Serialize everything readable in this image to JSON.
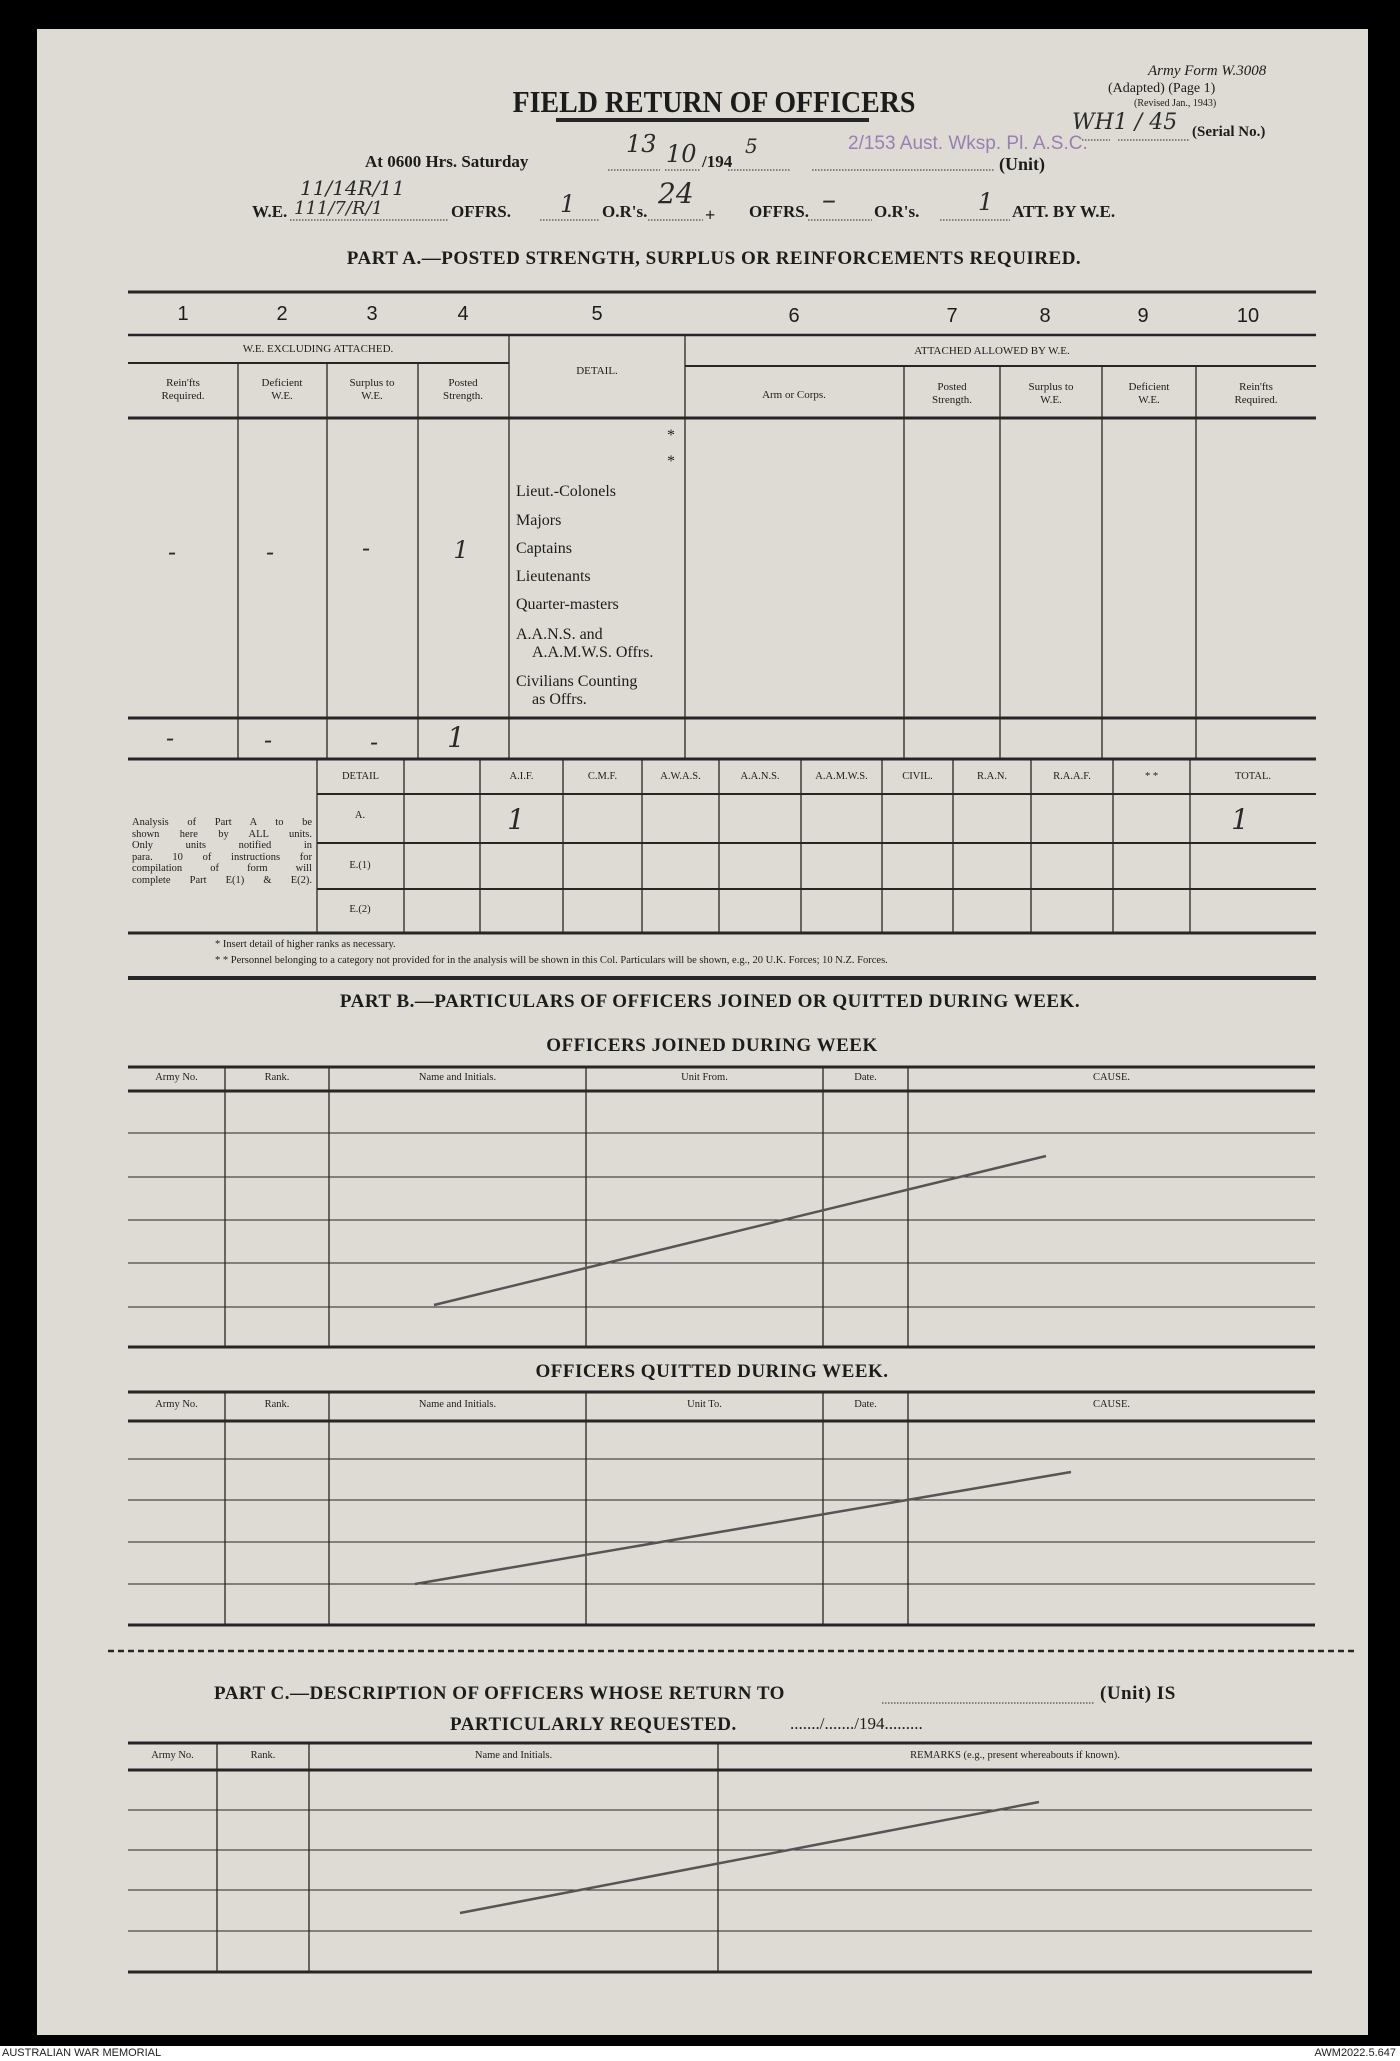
{
  "form": {
    "title": "FIELD RETURN OF OFFICERS",
    "form_no": "Army Form W.3008",
    "adapted": "(Adapted) (Page 1)",
    "revised": "(Revised Jan., 1943)",
    "serial_label": "(Serial No.)",
    "serial_value": "WH1 / 45",
    "at_label": "At 0600 Hrs. Saturday",
    "date_day": "13",
    "date_month": "10",
    "date_year_prefix": "/194",
    "date_year_suffix": "5",
    "unit_label": "(Unit)",
    "unit_stamp": "2/153 Aust. Wksp. Pl. A.S.C.",
    "we_label": "W.E.",
    "we_value": "111/7/R/1",
    "we_value_above": "11/14R/11",
    "offrs_label": "OFFRS.",
    "offrs_value": "1",
    "ors_label": "O.R's.",
    "ors_value": "24",
    "plus": "+",
    "offrs2_value": "–",
    "ors2_value": "1",
    "att_label": "ATT. BY W.E."
  },
  "part_a": {
    "heading": "PART A.—POSTED STRENGTH, SURPLUS OR REINFORCEMENTS REQUIRED.",
    "col_numbers": [
      "1",
      "2",
      "3",
      "4",
      "5",
      "6",
      "7",
      "8",
      "9",
      "10"
    ],
    "group_we": "W.E. EXCLUDING ATTACHED.",
    "group_att": "ATTACHED ALLOWED BY W.E.",
    "detail_header": "DETAIL.",
    "sub_headers": [
      [
        "Rein'fts",
        "Required."
      ],
      [
        "Deficient",
        "W.E."
      ],
      [
        "Surplus to",
        "W.E."
      ],
      [
        "Posted",
        "Strength."
      ],
      [
        "Arm or Corps.",
        ""
      ],
      [
        "Posted",
        "Strength."
      ],
      [
        "Surplus to",
        "W.E."
      ],
      [
        "Deficient",
        "W.E."
      ],
      [
        "Rein'fts",
        "Required."
      ]
    ],
    "detail_rows": [
      "*",
      "*",
      "Lieut.-Colonels",
      "Majors",
      "Captains",
      "Lieutenants",
      "Quarter-masters",
      "A.A.N.S. and",
      "A.A.M.W.S. Offrs.",
      "Civilians Counting",
      "as Offrs."
    ],
    "body_values": [
      "-",
      "-",
      "-",
      "1"
    ],
    "total_values": [
      "-",
      "-",
      "-",
      "1"
    ]
  },
  "analysis": {
    "note": [
      "Analysis of Part A to be",
      "shown here by ALL units.",
      "Only units notified in",
      "para. 10 of instructions for",
      "compilation of form will",
      "complete Part E(1) & E(2)."
    ],
    "headers": [
      "DETAIL",
      "",
      "A.I.F.",
      "C.M.F.",
      "A.W.A.S.",
      "A.A.N.S.",
      "A.A.M.W.S.",
      "CIVIL.",
      "R.A.N.",
      "R.A.A.F.",
      "* *",
      "TOTAL."
    ],
    "rows": [
      "A.",
      "E.(1)",
      "E.(2)"
    ],
    "a_aif": "1",
    "a_total": "1",
    "footnote1": "* Insert detail of higher ranks as necessary.",
    "footnote2": "* * Personnel belonging to a category not provided for in the analysis will be shown in this Col.  Particulars will be shown, e.g., 20 U.K. Forces; 10 N.Z. Forces."
  },
  "part_b": {
    "heading": "PART B.—PARTICULARS OF OFFICERS JOINED OR QUITTED DURING WEEK.",
    "joined_heading": "OFFICERS JOINED DURING WEEK",
    "joined_headers": [
      "Army No.",
      "Rank.",
      "Name and Initials.",
      "Unit From.",
      "Date.",
      "CAUSE."
    ],
    "quitted_heading": "OFFICERS QUITTED DURING WEEK.",
    "quitted_headers": [
      "Army No.",
      "Rank.",
      "Name and Initials.",
      "Unit To.",
      "Date.",
      "CAUSE."
    ]
  },
  "part_c": {
    "heading_line1": "PART C.—DESCRIPTION OF OFFICERS WHOSE RETURN TO",
    "heading_unit": "(Unit) IS",
    "heading_line2": "PARTICULARLY REQUESTED.",
    "heading_date": "......./......./194.........",
    "headers": [
      "Army No.",
      "Rank.",
      "Name and Initials.",
      "REMARKS (e.g., present whereabouts if known)."
    ]
  },
  "footer": {
    "left": "AUSTRALIAN WAR MEMORIAL",
    "right": "AWM2022.5.647"
  }
}
